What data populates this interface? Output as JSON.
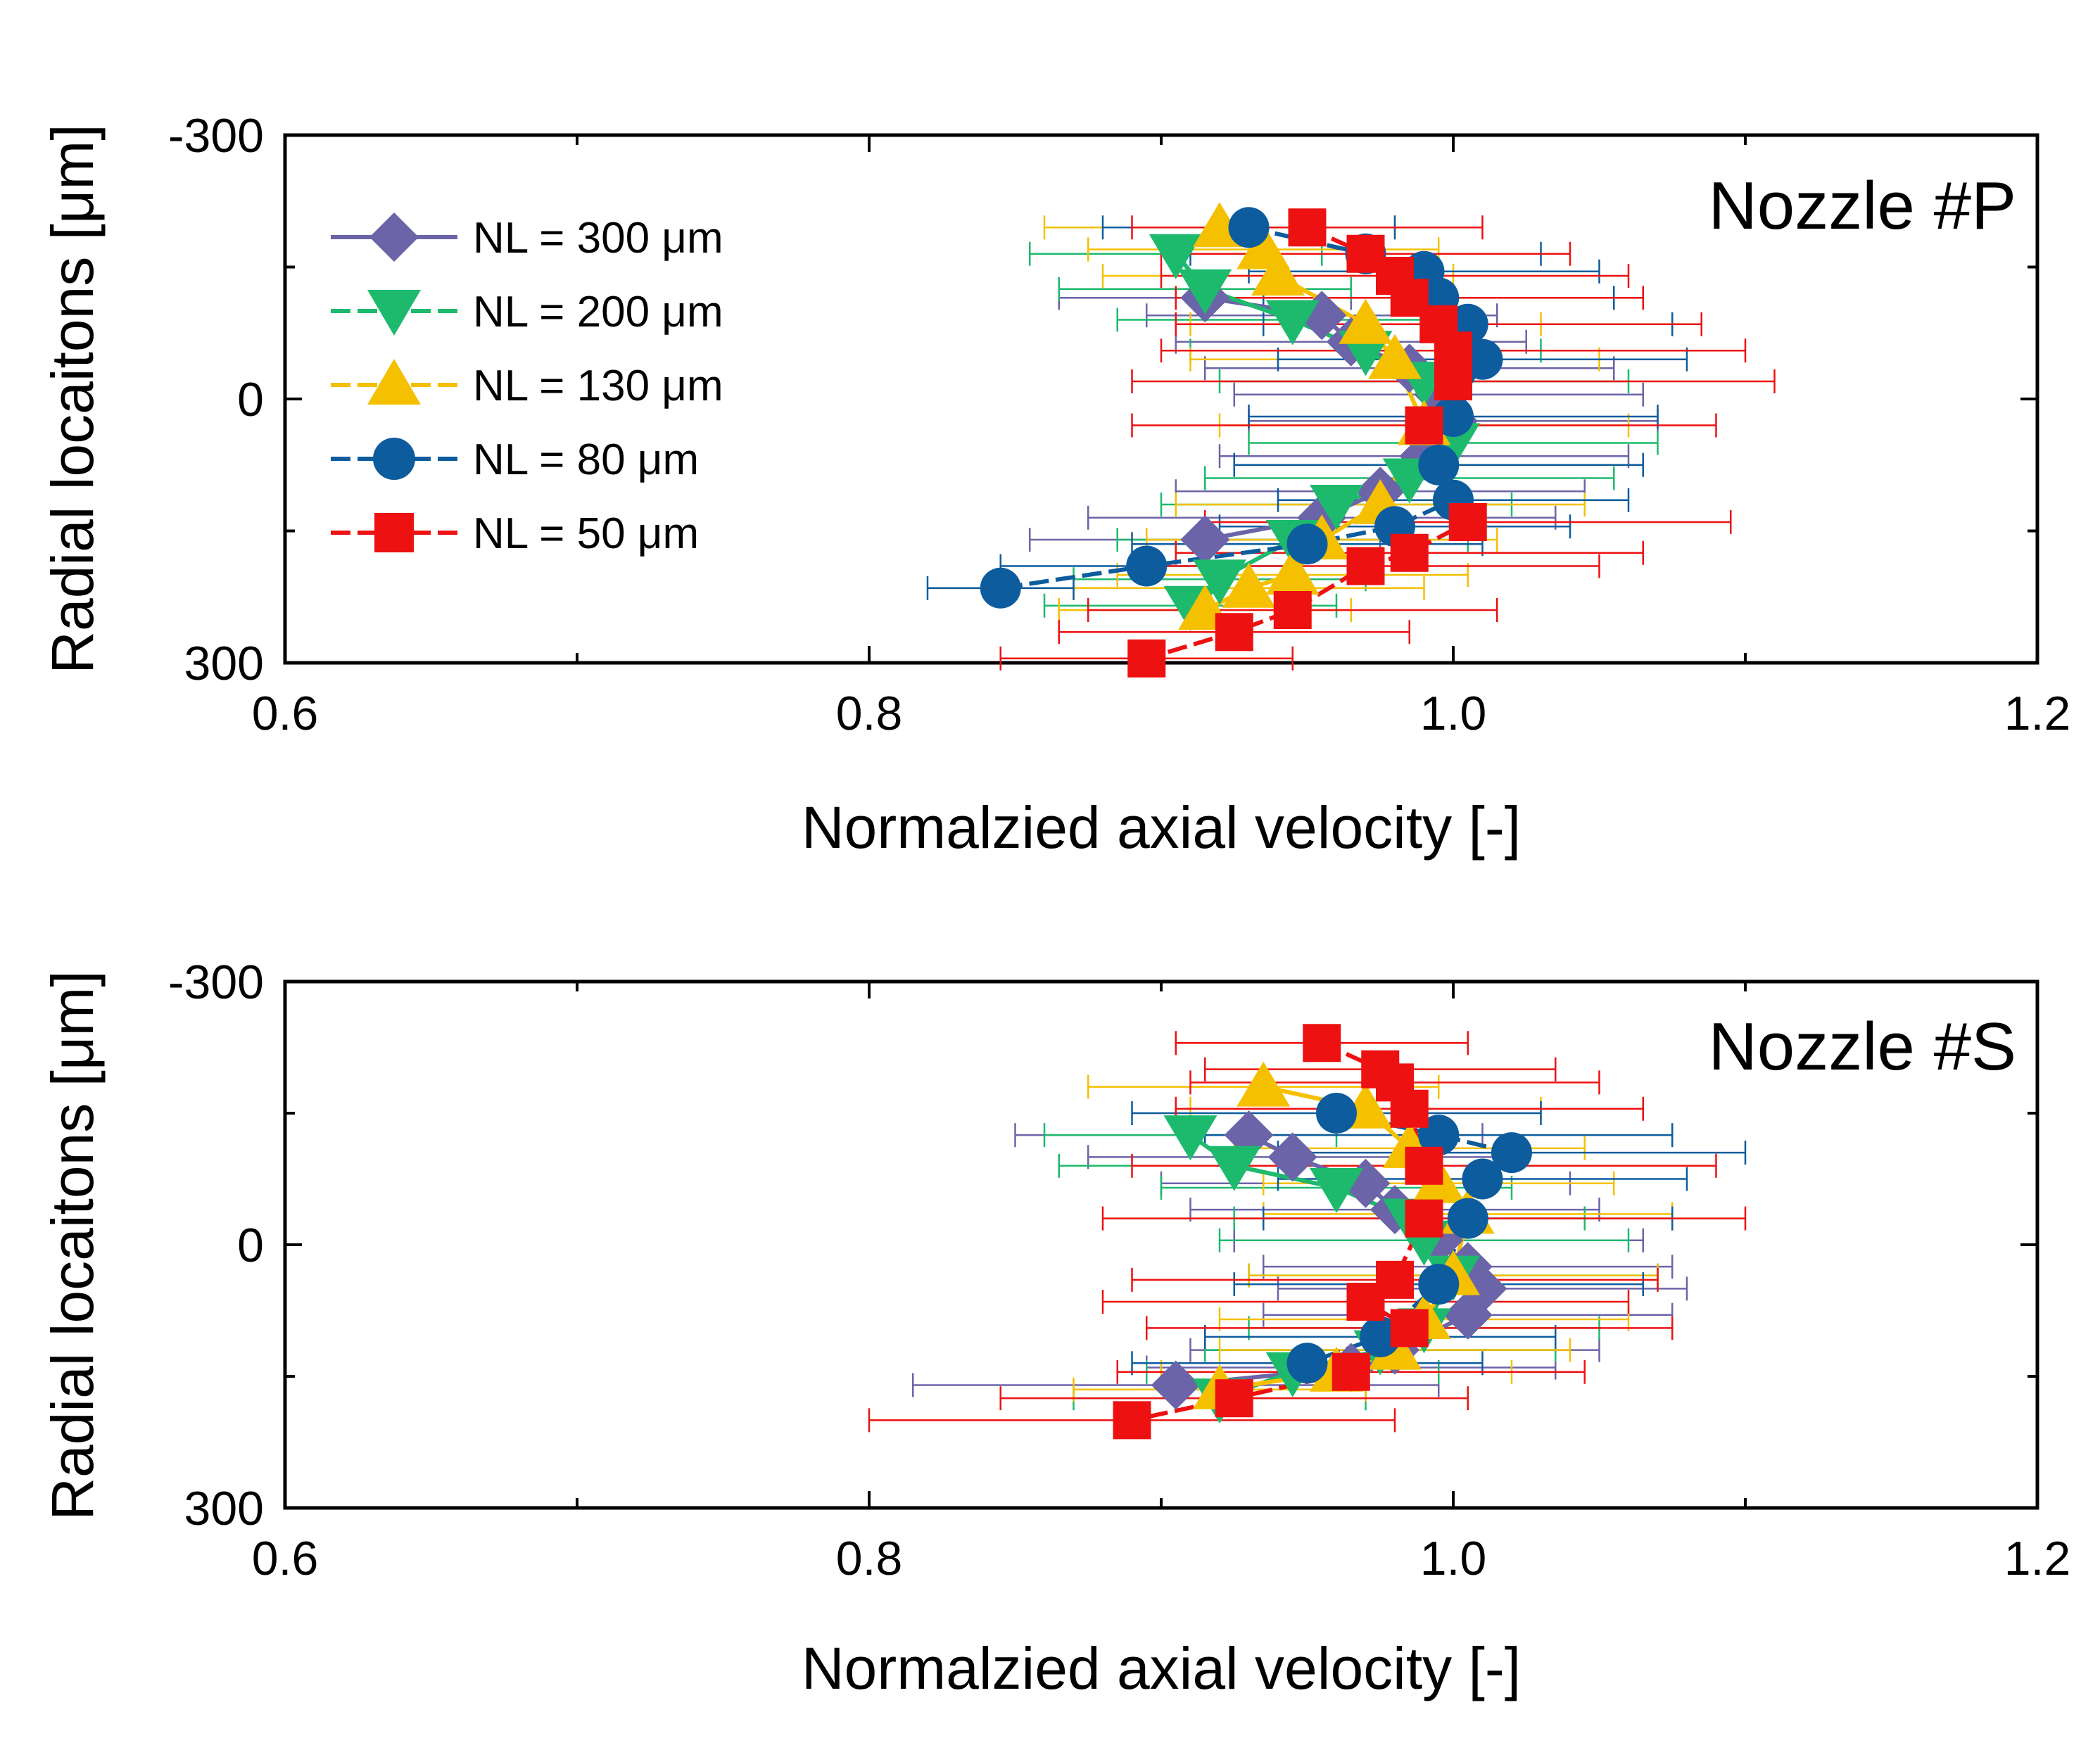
{
  "chart_data": [
    {
      "type": "scatter",
      "panel": "top",
      "title": "Nozzle #P",
      "xlabel": "Normalzied axial velocity [-]",
      "ylabel": "Radial locaitons [μm]",
      "xlim": [
        0.6,
        1.2
      ],
      "ylim": [
        -300,
        300
      ],
      "y_inverted": true,
      "xticks": [
        0.6,
        0.8,
        1.0,
        1.2
      ],
      "xtick_labels": [
        "0.6",
        "0.8",
        "1.0",
        "1.2"
      ],
      "yticks": [
        -300,
        0,
        300
      ],
      "ytick_labels": [
        "-300",
        "0",
        "300"
      ],
      "legend_position": "top-left",
      "series": [
        {
          "name": "NL = 300 μm",
          "color": "#6b64a8",
          "marker": "diamond",
          "dashed": false,
          "x": [
            0.915,
            0.955,
            0.965,
            0.985,
            0.995,
            1.0,
            0.99,
            0.975,
            0.955,
            0.915
          ],
          "y": [
            -115,
            -95,
            -65,
            -35,
            -5,
            25,
            65,
            105,
            135,
            160
          ],
          "err": [
            0.05,
            0.06,
            0.06,
            0.07,
            0.07,
            0.07,
            0.07,
            0.07,
            0.08,
            0.06
          ]
        },
        {
          "name": "NL = 200 μm",
          "color": "#1dba6d",
          "marker": "triangle-down",
          "dashed": false,
          "x": [
            0.905,
            0.915,
            0.945,
            0.97,
            0.99,
            1.0,
            0.985,
            0.96,
            0.945,
            0.92,
            0.91
          ],
          "y": [
            -165,
            -125,
            -90,
            -55,
            -20,
            50,
            90,
            120,
            160,
            205,
            235
          ],
          "err": [
            0.05,
            0.05,
            0.06,
            0.06,
            0.07,
            0.07,
            0.07,
            0.06,
            0.06,
            0.05,
            0.05
          ]
        },
        {
          "name": "NL = 130 μm",
          "color": "#f5c000",
          "marker": "triangle-up",
          "dashed": false,
          "x": [
            0.92,
            0.935,
            0.94,
            0.97,
            0.98,
            0.99,
            0.975,
            0.955,
            0.945,
            0.93,
            0.915
          ],
          "y": [
            -195,
            -170,
            -140,
            -85,
            -45,
            30,
            120,
            160,
            200,
            215,
            240
          ],
          "err": [
            0.06,
            0.06,
            0.06,
            0.06,
            0.07,
            0.07,
            0.07,
            0.06,
            0.06,
            0.06,
            0.05
          ]
        },
        {
          "name": "NL = 80 μm",
          "color": "#0d5c9e",
          "marker": "circle",
          "dashed": true,
          "x": [
            0.93,
            0.97,
            0.99,
            0.995,
            1.005,
            1.01,
            1.0,
            0.995,
            1.0,
            0.98,
            0.95,
            0.895,
            0.845
          ],
          "y": [
            -195,
            -165,
            -145,
            -115,
            -85,
            -45,
            20,
            75,
            115,
            145,
            165,
            190,
            215
          ],
          "err": [
            0.05,
            0.06,
            0.06,
            0.06,
            0.07,
            0.07,
            0.07,
            0.07,
            0.06,
            0.06,
            0.06,
            0.05,
            0.025
          ]
        },
        {
          "name": "NL = 50 μm",
          "color": "#ee1111",
          "marker": "square",
          "dashed": true,
          "x": [
            0.95,
            0.97,
            0.98,
            0.985,
            0.995,
            1.0,
            1.0,
            0.99,
            1.005,
            0.985,
            0.97,
            0.945,
            0.925,
            0.895
          ],
          "y": [
            -195,
            -165,
            -140,
            -115,
            -85,
            -55,
            -20,
            30,
            140,
            175,
            190,
            240,
            265,
            295
          ],
          "err": [
            0.06,
            0.07,
            0.08,
            0.08,
            0.09,
            0.1,
            0.11,
            0.1,
            0.09,
            0.08,
            0.08,
            0.07,
            0.06,
            0.05
          ]
        }
      ]
    },
    {
      "type": "scatter",
      "panel": "bottom",
      "title": "Nozzle #S",
      "xlabel": "Normalzied axial velocity [-]",
      "ylabel": "Radial locaitons [μm]",
      "xlim": [
        0.6,
        1.2
      ],
      "ylim": [
        -300,
        300
      ],
      "y_inverted": true,
      "xticks": [
        0.6,
        0.8,
        1.0,
        1.2
      ],
      "xtick_labels": [
        "0.6",
        "0.8",
        "1.0",
        "1.2"
      ],
      "yticks": [
        -300,
        0,
        300
      ],
      "ytick_labels": [
        "-300",
        "0",
        "300"
      ],
      "series": [
        {
          "name": "NL = 300 μm",
          "color": "#6b64a8",
          "marker": "diamond",
          "dashed": false,
          "x": [
            0.93,
            0.945,
            0.97,
            0.98,
            0.995,
            1.005,
            1.01,
            1.005,
            0.98,
            0.965,
            0.905
          ],
          "y": [
            -125,
            -100,
            -70,
            -40,
            -5,
            25,
            50,
            80,
            120,
            140,
            160
          ],
          "err": [
            0.08,
            0.07,
            0.07,
            0.07,
            0.07,
            0.07,
            0.07,
            0.07,
            0.07,
            0.07,
            0.09
          ]
        },
        {
          "name": "NL = 200 μm",
          "color": "#1dba6d",
          "marker": "triangle-down",
          "dashed": false,
          "x": [
            0.91,
            0.925,
            0.96,
            0.985,
            0.99,
            1.0,
            0.99,
            0.975,
            0.945,
            0.92
          ],
          "y": [
            -125,
            -90,
            -65,
            -30,
            -5,
            35,
            95,
            120,
            145,
            175
          ],
          "err": [
            0.05,
            0.06,
            0.06,
            0.06,
            0.07,
            0.07,
            0.06,
            0.06,
            0.05,
            0.05
          ]
        },
        {
          "name": "NL = 130 μm",
          "color": "#f5c000",
          "marker": "triangle-up",
          "dashed": false,
          "x": [
            0.935,
            0.97,
            0.985,
            0.995,
            1.005,
            1.0,
            0.99,
            0.98,
            0.96,
            0.92
          ],
          "y": [
            -180,
            -155,
            -110,
            -70,
            -35,
            35,
            85,
            120,
            145,
            165
          ],
          "err": [
            0.06,
            0.06,
            0.06,
            0.06,
            0.07,
            0.07,
            0.07,
            0.06,
            0.06,
            0.05
          ]
        },
        {
          "name": "NL = 80 μm",
          "color": "#0d5c9e",
          "marker": "circle",
          "dashed": true,
          "x": [
            0.96,
            0.995,
            1.02,
            1.01,
            1.005,
            0.995,
            0.975,
            0.95
          ],
          "y": [
            -150,
            -125,
            -105,
            -75,
            -30,
            45,
            105,
            135
          ],
          "err": [
            0.07,
            0.08,
            0.08,
            0.07,
            0.07,
            0.07,
            0.06,
            0.06
          ]
        },
        {
          "name": "NL = 50 μm",
          "color": "#ee1111",
          "marker": "square",
          "dashed": true,
          "x": [
            0.955,
            0.975,
            0.98,
            0.985,
            0.99,
            0.99,
            0.98,
            0.97,
            0.985,
            0.965,
            0.925,
            0.89
          ],
          "y": [
            -230,
            -200,
            -185,
            -155,
            -90,
            -30,
            40,
            65,
            95,
            145,
            175,
            200
          ],
          "err": [
            0.05,
            0.06,
            0.07,
            0.08,
            0.1,
            0.11,
            0.09,
            0.09,
            0.09,
            0.08,
            0.08,
            0.09
          ]
        }
      ]
    }
  ],
  "legend": {
    "items": [
      {
        "label": "NL = 300 μm"
      },
      {
        "label": "NL = 200 μm"
      },
      {
        "label": "NL = 130 μm"
      },
      {
        "label": "NL = 80 μm"
      },
      {
        "label": "NL = 50 μm"
      }
    ]
  }
}
